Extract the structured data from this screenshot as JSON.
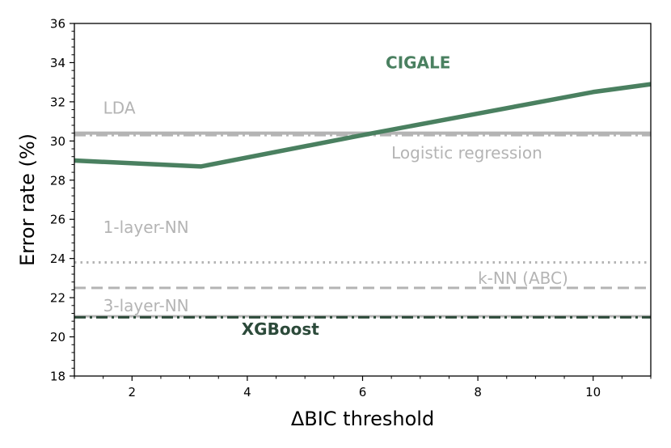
{
  "chart_data": {
    "type": "line",
    "xlabel": "ΔBIC threshold",
    "ylabel": "Error rate (%)",
    "xlim": [
      1,
      11
    ],
    "ylim": [
      18,
      36
    ],
    "x_ticks": [
      2,
      4,
      6,
      8,
      10
    ],
    "y_ticks": [
      18,
      20,
      22,
      24,
      26,
      28,
      30,
      32,
      34,
      36
    ],
    "grid": false,
    "series": [
      {
        "name": "CIGALE",
        "color": "#4a8060",
        "style": "solid",
        "x": [
          1,
          3.2,
          6,
          8,
          10,
          11
        ],
        "y": [
          29.0,
          28.7,
          30.3,
          31.4,
          32.5,
          32.9
        ]
      }
    ],
    "reference_lines": [
      {
        "name": "LDA",
        "y": 30.4,
        "color": "#b4b4b4",
        "style": "solid"
      },
      {
        "name": "Logistic regression",
        "y": 30.3,
        "color": "#b4b4b4",
        "style": "dashdot"
      },
      {
        "name": "1-layer-NN",
        "y": 23.8,
        "color": "#b4b4b4",
        "style": "dotted"
      },
      {
        "name": "k-NN (ABC)",
        "y": 22.5,
        "color": "#b4b4b4",
        "style": "dashed"
      },
      {
        "name": "3-layer-NN",
        "y": 21.05,
        "color": "#b4b4b4",
        "style": "solid"
      },
      {
        "name": "XGBoost",
        "y": 21.0,
        "color": "#2c4a3a",
        "style": "dashdot"
      }
    ],
    "annotations": [
      {
        "text": "CIGALE",
        "x": 6.4,
        "y": 33.7,
        "color": "#4a8060",
        "bold": true
      },
      {
        "text": "LDA",
        "x": 1.5,
        "y": 31.4,
        "color": "#b4b4b4",
        "bold": false
      },
      {
        "text": "Logistic regression",
        "x": 6.5,
        "y": 29.1,
        "color": "#b4b4b4",
        "bold": false
      },
      {
        "text": "1-layer-NN",
        "x": 1.5,
        "y": 25.3,
        "color": "#b4b4b4",
        "bold": false
      },
      {
        "text": "k-NN (ABC)",
        "x": 8.0,
        "y": 22.7,
        "color": "#b4b4b4",
        "bold": false
      },
      {
        "text": "3-layer-NN",
        "x": 1.5,
        "y": 21.3,
        "color": "#b4b4b4",
        "bold": false
      },
      {
        "text": "XGBoost",
        "x": 3.9,
        "y": 20.1,
        "color": "#2c4a3a",
        "bold": true
      }
    ]
  }
}
